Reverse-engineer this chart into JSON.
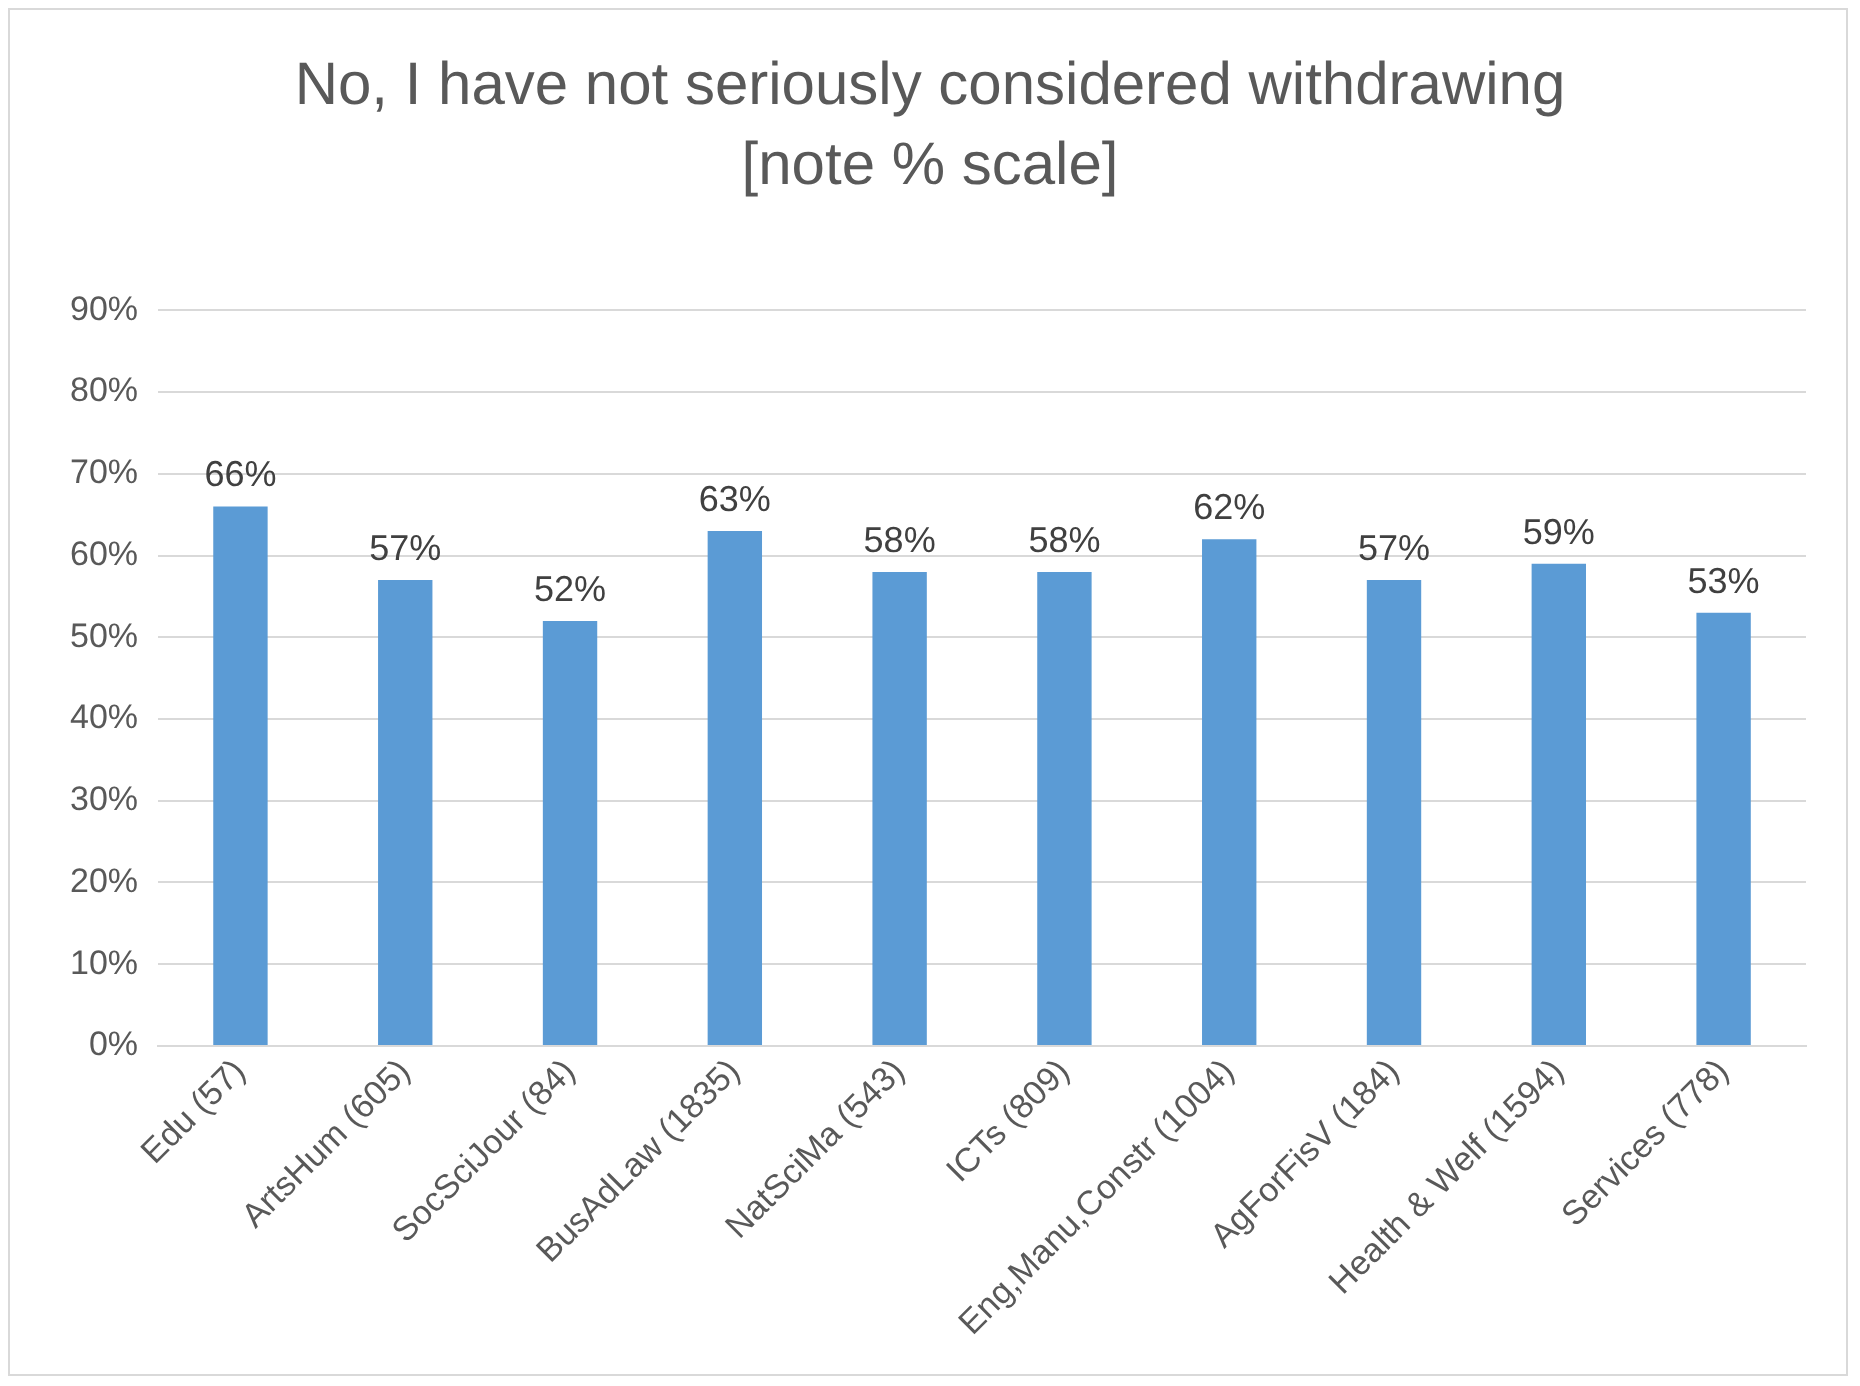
{
  "chart_data": {
    "type": "bar",
    "title": "No, I have not seriously considered withdrawing [note % scale]",
    "categories": [
      "Edu (57)",
      "ArtsHum (605)",
      "SocSciJour (84)",
      "BusAdLaw (1835)",
      "NatSciMa (543)",
      "ICTs (809)",
      "Eng,Manu,Constr (1004)",
      "AgForFisV (184)",
      "Health & Welf (1594)",
      "Services (778)"
    ],
    "values": [
      66,
      57,
      52,
      63,
      58,
      58,
      62,
      57,
      59,
      53
    ],
    "value_labels": [
      "66%",
      "57%",
      "52%",
      "63%",
      "58%",
      "58%",
      "62%",
      "57%",
      "59%",
      "53%"
    ],
    "color": "#5b9bd5",
    "ylim": [
      0,
      90
    ],
    "yticks": [
      {
        "value": 0,
        "label": "0%"
      },
      {
        "value": 10,
        "label": "10%"
      },
      {
        "value": 20,
        "label": "20%"
      },
      {
        "value": 30,
        "label": "30%"
      },
      {
        "value": 40,
        "label": "40%"
      },
      {
        "value": 50,
        "label": "50%"
      },
      {
        "value": 60,
        "label": "60%"
      },
      {
        "value": 70,
        "label": "70%"
      },
      {
        "value": 80,
        "label": "80%"
      },
      {
        "value": 90,
        "label": "90%"
      }
    ],
    "grid": "y",
    "legend": false
  }
}
